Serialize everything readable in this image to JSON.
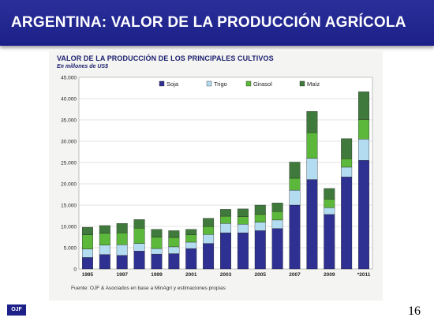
{
  "header": {
    "title": "ARGENTINA: VALOR DE LA PRODUCCIÓN AGRÍCOLA"
  },
  "footer": {
    "logo": "OJF",
    "page_number": "16"
  },
  "chart_data": {
    "type": "bar",
    "stacked": true,
    "title": "VALOR DE LA PRODUCCIÓN DE LOS PRINCIPALES CULTIVOS",
    "subtitle": "En millones de US$",
    "source": "Fuente: OJF & Asociados en base a MinAgri y estimaciones propias",
    "categories": [
      "1995",
      "1996",
      "1997",
      "1998",
      "1999",
      "2000",
      "2001",
      "2002",
      "2003",
      "2004",
      "2005",
      "2006",
      "2007",
      "2008",
      "2009",
      "2010",
      "*2011"
    ],
    "tick_labels": [
      "1995",
      "",
      "1997",
      "",
      "1999",
      "",
      "2001",
      "",
      "2003",
      "",
      "2005",
      "",
      "2007",
      "",
      "2009",
      "",
      "*2011"
    ],
    "ylim": [
      0,
      45000
    ],
    "yticks": [
      0,
      5000,
      10000,
      15000,
      20000,
      25000,
      30000,
      35000,
      40000,
      45000
    ],
    "ytick_labels": [
      "0",
      "5.000",
      "10.000",
      "15.000",
      "20.000",
      "25.000",
      "30.000",
      "35.000",
      "40.000",
      "45.000"
    ],
    "grid": true,
    "legend_position": "top",
    "series": [
      {
        "name": "Soja",
        "color": "#2e3192",
        "values": [
          2700,
          3400,
          3200,
          4200,
          3500,
          3600,
          4800,
          6000,
          8500,
          8500,
          9000,
          9500,
          15000,
          21000,
          12800,
          21600,
          25500
        ]
      },
      {
        "name": "Trigo",
        "color": "#b4dcf0",
        "values": [
          2000,
          2200,
          2500,
          1800,
          1300,
          1600,
          1500,
          2100,
          2200,
          2000,
          2000,
          2000,
          3500,
          5000,
          1600,
          2300,
          5000
        ]
      },
      {
        "name": "Girasol",
        "color": "#5cb83a",
        "values": [
          3300,
          2800,
          2800,
          3600,
          2700,
          2200,
          1700,
          1900,
          1700,
          1800,
          1800,
          2000,
          2800,
          6000,
          2000,
          2000,
          4600
        ]
      },
      {
        "name": "Maíz",
        "color": "#3f7a3c",
        "values": [
          1800,
          1800,
          2200,
          2000,
          1800,
          1600,
          1300,
          1900,
          1600,
          1800,
          2200,
          2000,
          3800,
          5000,
          2500,
          4700,
          6500
        ]
      }
    ]
  }
}
